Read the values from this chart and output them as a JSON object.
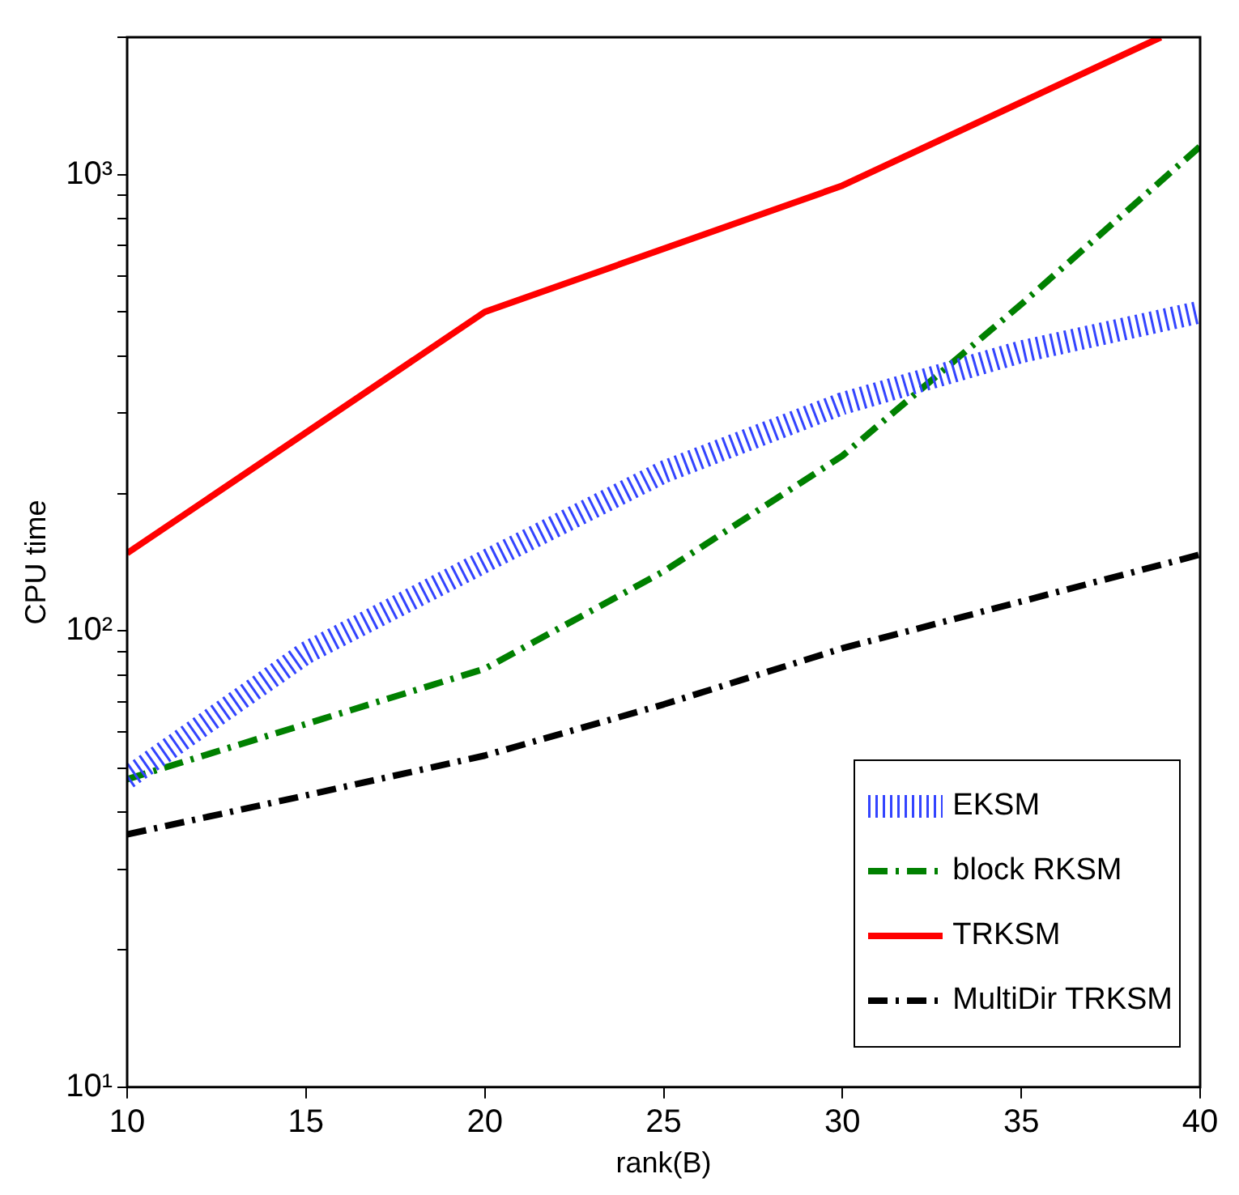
{
  "chart_data": {
    "type": "line",
    "xlabel": "rank(B)",
    "ylabel": "CPU time",
    "log": "y",
    "grid": false,
    "legend": "bottom right",
    "marker": "none",
    "xlim": [
      10,
      40
    ],
    "xticks": [
      10,
      15,
      20,
      25,
      30,
      35,
      40
    ],
    "ylim": [
      10,
      2000
    ],
    "yticks": [
      {
        "value": 10,
        "label": "10¹"
      },
      {
        "value": 20,
        "label": null
      },
      {
        "value": 30,
        "label": null
      },
      {
        "value": 40,
        "label": null
      },
      {
        "value": 50,
        "label": null
      },
      {
        "value": 60,
        "label": null
      },
      {
        "value": 70,
        "label": null
      },
      {
        "value": 80,
        "label": null
      },
      {
        "value": 90,
        "label": null
      },
      {
        "value": 100,
        "label": "10²"
      },
      {
        "value": 200,
        "label": null
      },
      {
        "value": 300,
        "label": null
      },
      {
        "value": 400,
        "label": null
      },
      {
        "value": 500,
        "label": null
      },
      {
        "value": 600,
        "label": null
      },
      {
        "value": 700,
        "label": null
      },
      {
        "value": 800,
        "label": null
      },
      {
        "value": 900,
        "label": null
      },
      {
        "value": 1000,
        "label": "10³"
      },
      {
        "value": 2000,
        "label": null
      }
    ],
    "x": [
      10,
      15,
      20,
      25,
      30,
      35,
      40
    ],
    "series": [
      {
        "name": "EKSM",
        "color": "#3344ff",
        "line_style": "dotted",
        "values": [
          47.6,
          89.5,
          142,
          223,
          315,
          409,
          500
        ]
      },
      {
        "name": "block RKSM",
        "color": "#008000",
        "line_style": "dashed",
        "values": [
          47.3,
          null,
          82.6,
          135,
          242,
          520,
          1153
        ]
      },
      {
        "name": "TRKSM",
        "color": "#ff0000",
        "line_style": "solid",
        "x": [
          10,
          20,
          30,
          38.9
        ],
        "values": [
          148,
          500,
          946,
          2000
        ]
      },
      {
        "name": "MultiDir TRKSM",
        "color": "#000000",
        "line_style": "dashed",
        "values": [
          35.8,
          43.6,
          53.3,
          69,
          91.6,
          116,
          147
        ]
      }
    ]
  }
}
